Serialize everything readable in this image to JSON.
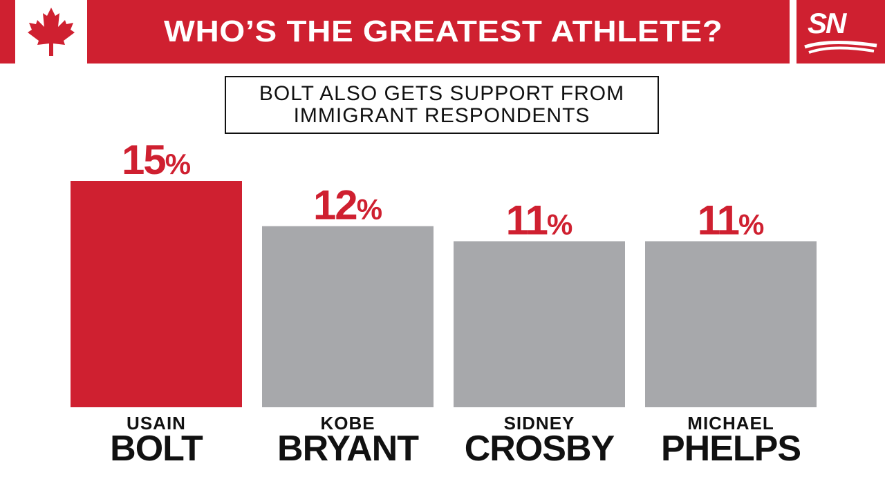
{
  "header": {
    "title": "WHO’S THE GREATEST ATHLETE?",
    "logo_text": "SN",
    "flag_icon": "maple-leaf-icon"
  },
  "subtitle": "BOLT ALSO GETS SUPPORT FROM\nIMMIGRANT RESPONDENTS",
  "colors": {
    "accent": "#cf2030",
    "bar_default": "#a7a8ab",
    "text_dark": "#111111"
  },
  "chart_data": {
    "type": "bar",
    "title": "WHO’S THE GREATEST ATHLETE?",
    "subtitle": "BOLT ALSO GETS SUPPORT FROM IMMIGRANT RESPONDENTS",
    "categories": [
      {
        "first": "USAIN",
        "last": "BOLT"
      },
      {
        "first": "KOBE",
        "last": "BRYANT"
      },
      {
        "first": "SIDNEY",
        "last": "CROSBY"
      },
      {
        "first": "MICHAEL",
        "last": "PHELPS"
      }
    ],
    "values": [
      15,
      12,
      11,
      11
    ],
    "value_labels": [
      "15%",
      "12%",
      "11%",
      "11%"
    ],
    "highlight_index": 0,
    "ylim": [
      0,
      16
    ],
    "grid": false,
    "legend": "none"
  }
}
